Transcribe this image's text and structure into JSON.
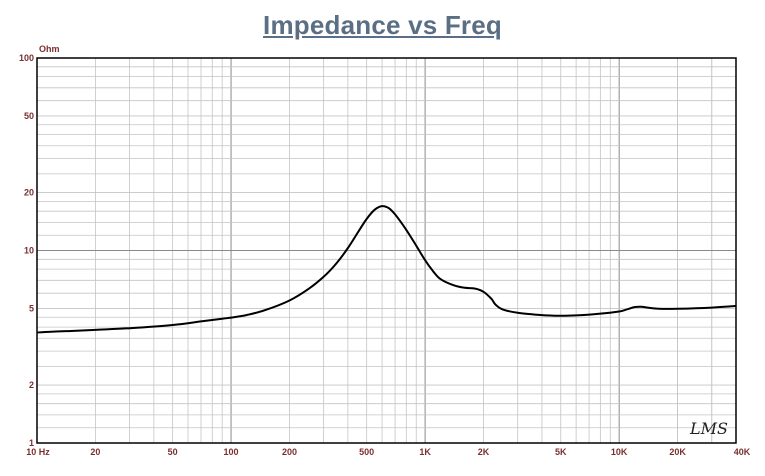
{
  "chart_data": {
    "type": "line",
    "title": "Impedance vs Freq",
    "ylabel": "Ohm",
    "xlabel": "",
    "xscale": "log",
    "yscale": "log",
    "xlim": [
      10,
      40000
    ],
    "ylim": [
      1,
      100
    ],
    "grid": true,
    "x_ticks": [
      {
        "value": 10,
        "label": "10  Hz"
      },
      {
        "value": 20,
        "label": "20"
      },
      {
        "value": 50,
        "label": "50"
      },
      {
        "value": 100,
        "label": "100"
      },
      {
        "value": 200,
        "label": "200"
      },
      {
        "value": 500,
        "label": "500"
      },
      {
        "value": 1000,
        "label": "1K"
      },
      {
        "value": 2000,
        "label": "2K"
      },
      {
        "value": 5000,
        "label": "5K"
      },
      {
        "value": 10000,
        "label": "10K"
      },
      {
        "value": 20000,
        "label": "20K"
      },
      {
        "value": 40000,
        "label": "40K"
      }
    ],
    "y_ticks": [
      {
        "value": 1,
        "label": "1"
      },
      {
        "value": 2,
        "label": "2"
      },
      {
        "value": 5,
        "label": "5"
      },
      {
        "value": 10,
        "label": "10"
      },
      {
        "value": 20,
        "label": "20"
      },
      {
        "value": 50,
        "label": "50"
      },
      {
        "value": 100,
        "label": "100"
      }
    ],
    "series": [
      {
        "color": "#000000",
        "x": [
          10,
          13,
          15,
          20,
          30,
          50,
          70,
          90,
          100,
          120,
          150,
          200,
          250,
          300,
          350,
          400,
          450,
          500,
          550,
          600,
          650,
          700,
          800,
          900,
          1000,
          1100,
          1200,
          1400,
          1600,
          1800,
          2000,
          2200,
          2300,
          2500,
          3000,
          4000,
          5000,
          6000,
          8000,
          10000,
          11000,
          12000,
          13000,
          14000,
          16000,
          20000,
          30000,
          40000
        ],
        "values": [
          3.75,
          3.8,
          3.82,
          3.87,
          3.95,
          4.1,
          4.28,
          4.42,
          4.48,
          4.62,
          4.9,
          5.5,
          6.3,
          7.3,
          8.6,
          10.3,
          12.4,
          14.6,
          16.3,
          17.0,
          16.6,
          15.4,
          12.8,
          10.6,
          8.9,
          7.8,
          7.1,
          6.6,
          6.4,
          6.35,
          6.1,
          5.6,
          5.25,
          4.95,
          4.75,
          4.62,
          4.58,
          4.6,
          4.7,
          4.82,
          4.95,
          5.08,
          5.1,
          5.05,
          4.98,
          4.98,
          5.05,
          5.15
        ]
      }
    ]
  },
  "logo_text": "LMS"
}
